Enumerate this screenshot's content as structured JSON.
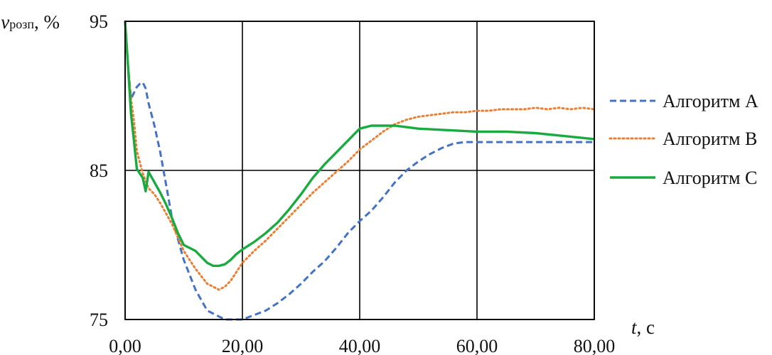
{
  "chart_data": {
    "type": "line",
    "xlabel": {
      "var": "t",
      "unit": ", с"
    },
    "ylabel": {
      "var": "v",
      "sub": "розп",
      "unit": ", %"
    },
    "xlim": [
      0,
      80
    ],
    "ylim": [
      75,
      95
    ],
    "x_ticks": [
      0,
      20,
      40,
      60,
      80
    ],
    "x_tick_labels": [
      "0,00",
      "20,00",
      "40,00",
      "60,00",
      "80,00"
    ],
    "y_ticks": [
      75,
      85,
      95
    ],
    "y_tick_labels": [
      "75",
      "85",
      "95"
    ],
    "grid": true,
    "legend_position": "right",
    "series": [
      {
        "name": "Алгоритм А",
        "color": "#4472c4",
        "style": "dashed",
        "x": [
          0,
          0.5,
          1,
          1.5,
          2,
          2.5,
          3,
          3.5,
          4,
          5,
          6,
          7,
          8,
          10,
          12,
          14,
          16,
          17,
          18,
          19,
          20,
          22,
          24,
          26,
          28,
          30,
          32,
          34,
          36,
          38,
          40,
          42,
          44,
          46,
          48,
          50,
          52,
          54,
          56,
          58,
          60,
          65,
          70,
          75,
          80
        ],
        "y": [
          95,
          92,
          89.8,
          90.2,
          90.6,
          90.8,
          90.9,
          90.5,
          89.5,
          88,
          86.2,
          84,
          81.8,
          79,
          77,
          75.6,
          75.2,
          75,
          75,
          75,
          75,
          75.3,
          75.6,
          76.1,
          76.7,
          77.4,
          78.2,
          78.9,
          79.8,
          80.8,
          81.6,
          82.3,
          83.2,
          84.2,
          85,
          85.6,
          86.1,
          86.5,
          86.8,
          86.9,
          86.9,
          86.9,
          86.9,
          86.9,
          86.9
        ]
      },
      {
        "name": "Алгоритм В",
        "color": "#ed7d31",
        "style": "dotted",
        "x": [
          0,
          0.5,
          1,
          1.5,
          2,
          3,
          4,
          5,
          6,
          8,
          10,
          12,
          14,
          16,
          17,
          18,
          19,
          20,
          22,
          24,
          26,
          28,
          30,
          32,
          34,
          36,
          38,
          40,
          42,
          44,
          46,
          48,
          50,
          52,
          54,
          56,
          58,
          60,
          62,
          64,
          66,
          68,
          70,
          72,
          74,
          76,
          78,
          80
        ],
        "y": [
          95,
          92,
          89.8,
          88.3,
          86.3,
          84.8,
          83.8,
          83.4,
          82.8,
          81.4,
          79.6,
          78.4,
          77.4,
          77,
          77.2,
          77.6,
          78.2,
          78.8,
          79.6,
          80.3,
          81.1,
          81.9,
          82.7,
          83.5,
          84.2,
          84.9,
          85.6,
          86.4,
          87,
          87.6,
          88.1,
          88.4,
          88.6,
          88.7,
          88.8,
          88.9,
          88.9,
          89,
          89,
          89.1,
          89.1,
          89.1,
          89.2,
          89.1,
          89.2,
          89.1,
          89.2,
          89.1
        ]
      },
      {
        "name": "Алгоритм С",
        "color": "#1aab40",
        "style": "solid",
        "x": [
          0,
          0.5,
          1,
          1.5,
          2,
          3,
          3.5,
          4,
          5,
          6,
          7,
          8,
          9,
          10,
          12,
          14,
          15,
          16,
          17,
          18,
          19,
          20,
          22,
          24,
          26,
          28,
          30,
          32,
          34,
          36,
          38,
          40,
          42,
          44,
          46,
          48,
          50,
          55,
          60,
          65,
          70,
          75,
          80
        ],
        "y": [
          95,
          92,
          88.8,
          87,
          85.1,
          84.5,
          83.6,
          84.9,
          84.2,
          83.5,
          82.7,
          81.8,
          80.8,
          80,
          79.6,
          78.8,
          78.6,
          78.6,
          78.7,
          79,
          79.4,
          79.7,
          80.2,
          80.8,
          81.5,
          82.4,
          83.4,
          84.5,
          85.4,
          86.2,
          87,
          87.8,
          88,
          88,
          88,
          87.9,
          87.8,
          87.7,
          87.6,
          87.6,
          87.5,
          87.3,
          87.1
        ]
      }
    ]
  }
}
